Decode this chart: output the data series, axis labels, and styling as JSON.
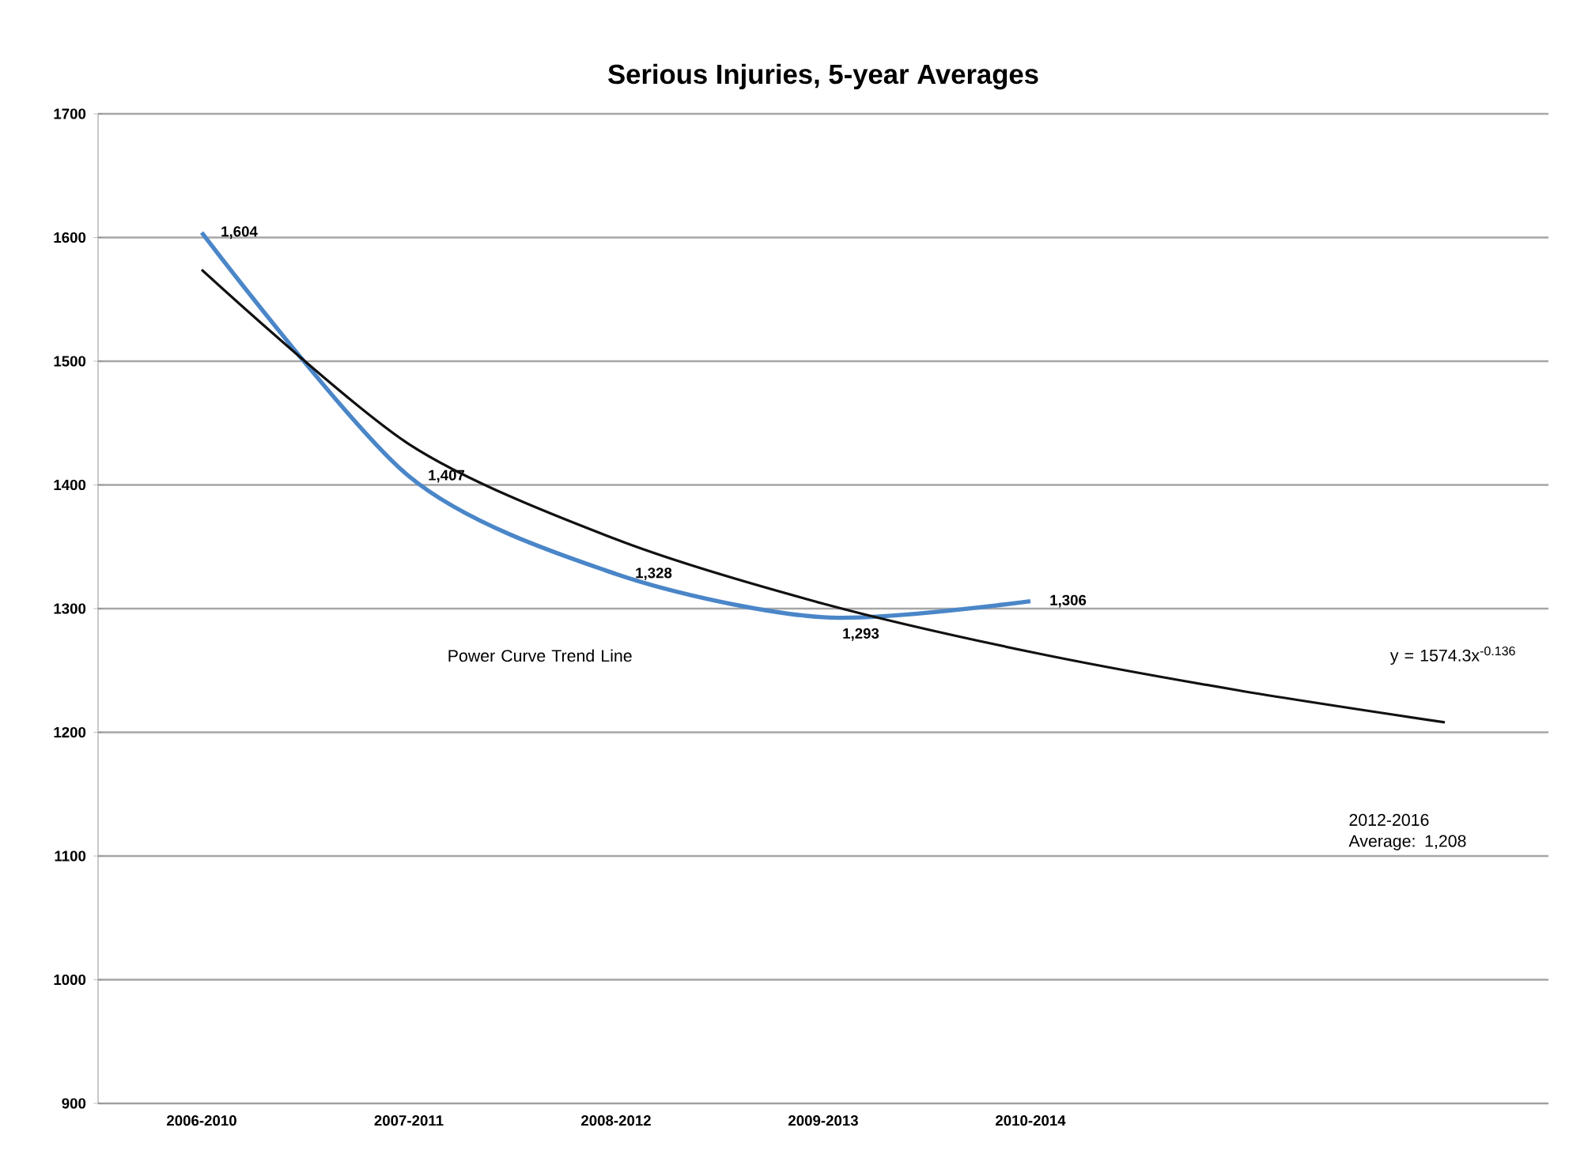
{
  "chart_data": {
    "type": "line",
    "title": "Serious Injuries, 5-year Averages",
    "categories": [
      "2006-2010",
      "2007-2011",
      "2008-2012",
      "2009-2013",
      "2010-2014",
      null,
      null
    ],
    "series": [
      {
        "color": "#4a86c8",
        "values": [
          1604,
          1407,
          1328,
          1293,
          1306,
          null,
          null
        ],
        "value_labels": [
          "1,604",
          "1,407",
          "1,328",
          "1,293",
          "1,306",
          null,
          null
        ]
      },
      {
        "type": "line",
        "color": "#111111",
        "values": [
          1574,
          1433,
          1356,
          1304,
          1265,
          1234,
          1208
        ]
      }
    ],
    "ylim": [
      900,
      1700
    ],
    "yticks": [
      900,
      1000,
      1100,
      1200,
      1300,
      1400,
      1500,
      1600,
      1700
    ],
    "grid": "y",
    "marker": "none",
    "line_style": "solid",
    "annotations": [
      "Power Curve Trend Line",
      "y = 1574.3x$^{-0.136}$",
      "2012-2016 Average: 1,208"
    ]
  }
}
